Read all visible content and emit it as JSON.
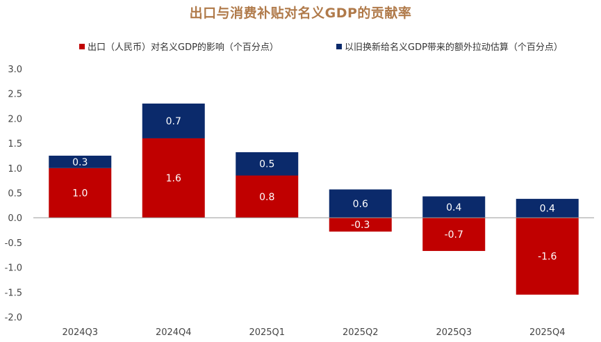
{
  "chart_data": {
    "type": "bar",
    "stacked": true,
    "title": "出口与消费补贴对名义GDP的贡献率",
    "categories": [
      "2024Q3",
      "2024Q4",
      "2025Q1",
      "2025Q2",
      "2025Q3",
      "2025Q4"
    ],
    "series": [
      {
        "name": "出口（人民币）对名义GDP的影响（个百分点）",
        "color": "#c00000",
        "values": [
          1.0,
          1.6,
          0.85,
          -0.28,
          -0.67,
          -1.55
        ],
        "labels": [
          "1.0",
          "1.6",
          "0.8",
          "-0.3",
          "-0.7",
          "-1.6"
        ]
      },
      {
        "name": "以旧换新给名义GDP带来的额外拉动估算（个百分点）",
        "color": "#0b2a6b",
        "values": [
          0.25,
          0.7,
          0.47,
          0.57,
          0.43,
          0.38
        ],
        "labels": [
          "0.3",
          "0.7",
          "0.5",
          "0.6",
          "0.4",
          "0.4"
        ]
      }
    ],
    "ylim": [
      -2.0,
      3.0
    ],
    "yticks": [
      "3.0",
      "2.5",
      "2.0",
      "1.5",
      "1.0",
      "0.5",
      "0.0",
      "-0.5",
      "-1.0",
      "-1.5",
      "-2.0"
    ],
    "xlabel": "",
    "ylabel": "",
    "grid": false,
    "legend": "top"
  }
}
